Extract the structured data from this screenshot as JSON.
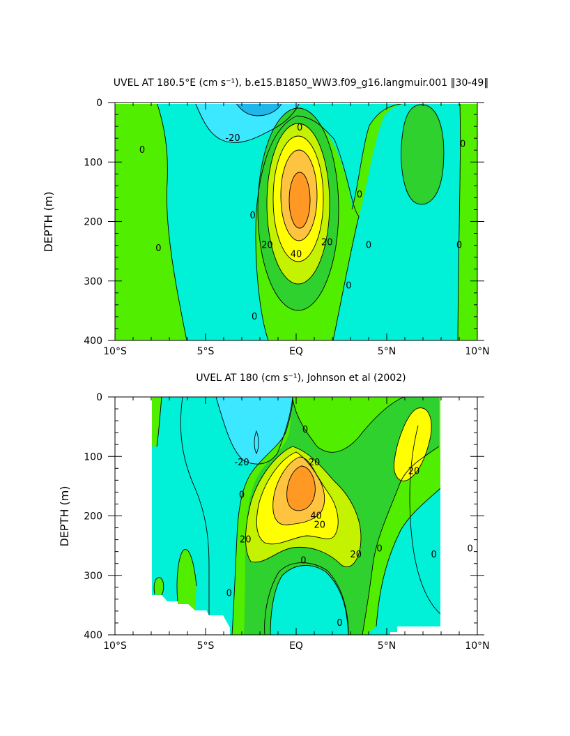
{
  "palette": {
    "lt_-20": "#1fb6ea",
    "-20_-10": "#3be8ff",
    "-10_0": "#00f0d8",
    "0_10": "#52ee00",
    "10_20": "#2ed12e",
    "20_30": "#c4f200",
    "30_40": "#ffff00",
    "40_50": "#ffc43f",
    "gt_50": "#ff9924",
    "missing": "#ffffff",
    "contour_line": "#000000"
  },
  "chart_data": [
    {
      "type": "heatmap",
      "title": "UVEL AT 180.5°E (cm s⁻¹), b.e15.B1850_WW3.f09_g16.langmuir.001 ‖30-49‖",
      "ylabel": "DEPTH (m)",
      "xlabel": "",
      "xlim": [
        -10,
        10
      ],
      "ylim": [
        400,
        0
      ],
      "xticks": [
        "10°S",
        "5°S",
        "EQ",
        "5°N",
        "10°N"
      ],
      "yticks": [
        "0",
        "100",
        "200",
        "300",
        "400"
      ],
      "contour_interval": 10,
      "contour_labels": [
        {
          "text": "0",
          "x": -8.5,
          "y": 80
        },
        {
          "text": "0",
          "x": -7.6,
          "y": 245
        },
        {
          "text": "-20",
          "x": -3.5,
          "y": 60
        },
        {
          "text": "0",
          "x": 0.2,
          "y": 42
        },
        {
          "text": "0",
          "x": -2.4,
          "y": 190
        },
        {
          "text": "0",
          "x": -2.3,
          "y": 360
        },
        {
          "text": "20",
          "x": -1.6,
          "y": 240
        },
        {
          "text": "40",
          "x": 0.0,
          "y": 255
        },
        {
          "text": "20",
          "x": 1.7,
          "y": 235
        },
        {
          "text": "0",
          "x": 3.5,
          "y": 155
        },
        {
          "text": "0",
          "x": 4.0,
          "y": 240
        },
        {
          "text": "0",
          "x": 2.9,
          "y": 308
        },
        {
          "text": "0",
          "x": 9.2,
          "y": 70
        },
        {
          "text": "0",
          "x": 9.0,
          "y": 240
        }
      ]
    },
    {
      "type": "heatmap",
      "title": "UVEL AT 180 (cm s⁻¹), Johnson et al (2002)",
      "ylabel": "DEPTH (m)",
      "xlabel": "",
      "xlim": [
        -10,
        10
      ],
      "ylim": [
        400,
        0
      ],
      "xticks": [
        "10°S",
        "5°S",
        "EQ",
        "5°N",
        "10°N"
      ],
      "yticks": [
        "0",
        "100",
        "200",
        "300",
        "400"
      ],
      "contour_interval": 10,
      "contour_labels": [
        {
          "text": "-20",
          "x": -3.0,
          "y": 110
        },
        {
          "text": "0",
          "x": 0.5,
          "y": 55
        },
        {
          "text": "20",
          "x": 1.0,
          "y": 110
        },
        {
          "text": "0",
          "x": -3.0,
          "y": 165
        },
        {
          "text": "40",
          "x": 1.1,
          "y": 200
        },
        {
          "text": "20",
          "x": 1.3,
          "y": 215
        },
        {
          "text": "20",
          "x": -2.8,
          "y": 240
        },
        {
          "text": "0",
          "x": 0.4,
          "y": 275
        },
        {
          "text": "20",
          "x": 3.3,
          "y": 265
        },
        {
          "text": "0",
          "x": 4.6,
          "y": 255
        },
        {
          "text": "0",
          "x": 7.6,
          "y": 265
        },
        {
          "text": "0",
          "x": 9.6,
          "y": 255
        },
        {
          "text": "20",
          "x": 6.5,
          "y": 125
        },
        {
          "text": "0",
          "x": -3.7,
          "y": 330
        },
        {
          "text": "0",
          "x": 2.4,
          "y": 380
        }
      ]
    }
  ]
}
